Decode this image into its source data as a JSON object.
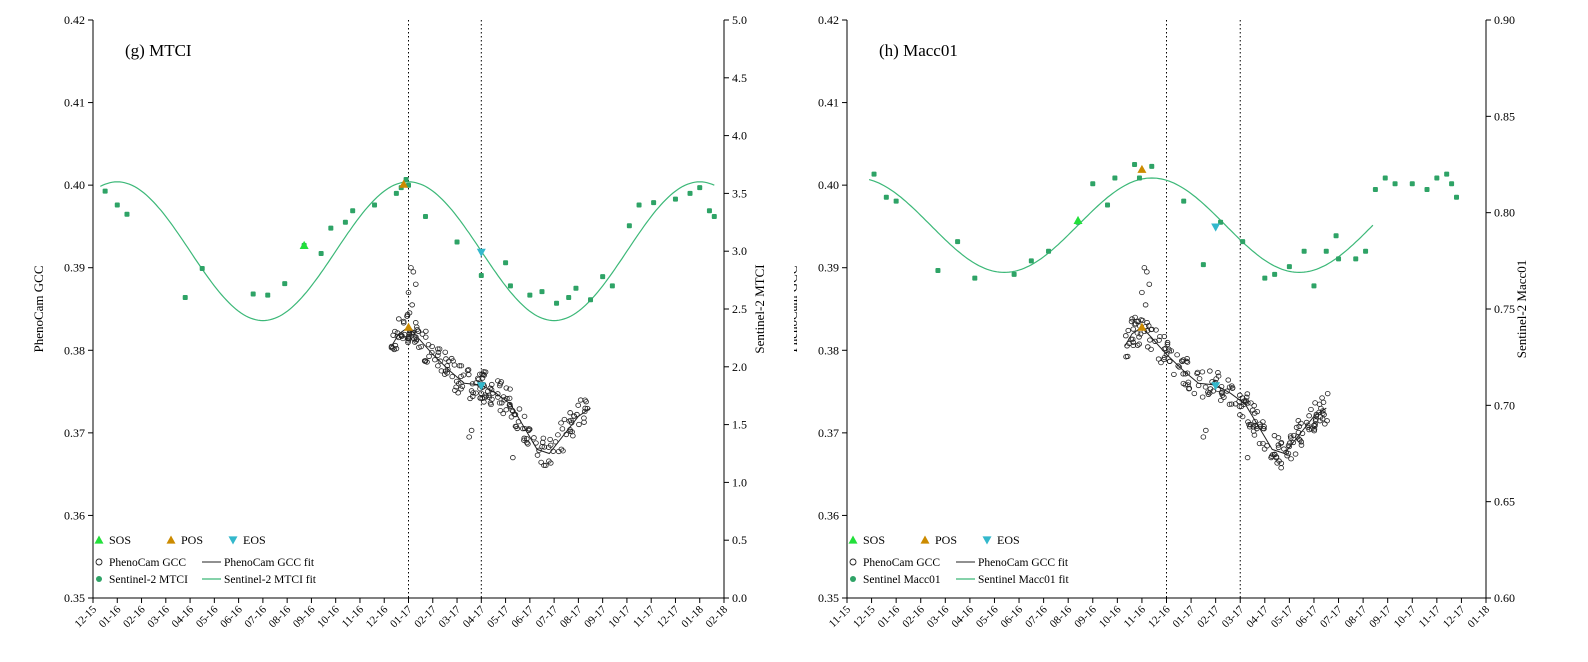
{
  "colors": {
    "s2_marker": "#2ea366",
    "s2_fit": "#3cb878",
    "gcc_fit": "#222222",
    "sos": "#22e03a",
    "pos": "#cc8b00",
    "eos": "#33b8cc",
    "vline": "#000000"
  },
  "chart_data": [
    {
      "id": "g",
      "type": "scatter",
      "title": "(g) MTCI",
      "ylabel": "PhenoCam GCC",
      "y2label": "Sentinel-2 MTCI",
      "ylim": [
        0.35,
        0.42
      ],
      "y2lim": [
        0.0,
        5.0
      ],
      "yticks": [
        "0.35",
        "0.36",
        "0.37",
        "0.38",
        "0.39",
        "0.40",
        "0.41",
        "0.42"
      ],
      "y2ticks": [
        "0.0",
        "0.5",
        "1.0",
        "1.5",
        "2.0",
        "2.5",
        "3.0",
        "3.5",
        "4.0",
        "4.5",
        "5.0"
      ],
      "xticks": [
        "12-15",
        "01-16",
        "02-16",
        "03-16",
        "04-16",
        "05-16",
        "06-16",
        "07-16",
        "08-16",
        "09-16",
        "10-16",
        "11-16",
        "12-16",
        "01-17",
        "02-17",
        "03-17",
        "04-17",
        "05-17",
        "06-17",
        "07-17",
        "08-17",
        "09-17",
        "10-17",
        "11-17",
        "12-17",
        "01-18",
        "02-18"
      ],
      "vlines": [
        13.0,
        16.0
      ],
      "legend": {
        "sos": "SOS",
        "pos": "POS",
        "eos": "EOS",
        "gcc": "PhenoCam GCC",
        "gcc_fit": "PhenoCam GCC fit",
        "s2": "Sentinel-2 MTCI",
        "s2_fit": "Sentinel-2 MTCI fit"
      },
      "s2_fit": {
        "mean": 3.0,
        "amp": 0.6,
        "peak_x": 13.0,
        "x_start": 0.3,
        "x_end": 25.6
      },
      "s2_points": [
        {
          "x": 0.5,
          "y": 3.52
        },
        {
          "x": 1.0,
          "y": 3.4
        },
        {
          "x": 1.4,
          "y": 3.32
        },
        {
          "x": 3.8,
          "y": 2.6
        },
        {
          "x": 4.5,
          "y": 2.85
        },
        {
          "x": 6.6,
          "y": 2.63
        },
        {
          "x": 7.2,
          "y": 2.62
        },
        {
          "x": 7.9,
          "y": 2.72
        },
        {
          "x": 8.7,
          "y": 3.05
        },
        {
          "x": 9.4,
          "y": 2.98
        },
        {
          "x": 9.8,
          "y": 3.2
        },
        {
          "x": 10.4,
          "y": 3.25
        },
        {
          "x": 10.7,
          "y": 3.35
        },
        {
          "x": 11.6,
          "y": 3.4
        },
        {
          "x": 12.5,
          "y": 3.5
        },
        {
          "x": 12.7,
          "y": 3.55
        },
        {
          "x": 12.9,
          "y": 3.62
        },
        {
          "x": 13.0,
          "y": 3.57
        },
        {
          "x": 13.7,
          "y": 3.3
        },
        {
          "x": 15.0,
          "y": 3.08
        },
        {
          "x": 16.0,
          "y": 2.79
        },
        {
          "x": 17.0,
          "y": 2.9
        },
        {
          "x": 17.2,
          "y": 2.7
        },
        {
          "x": 18.0,
          "y": 2.62
        },
        {
          "x": 18.5,
          "y": 2.65
        },
        {
          "x": 19.1,
          "y": 2.55
        },
        {
          "x": 19.6,
          "y": 2.6
        },
        {
          "x": 19.9,
          "y": 2.68
        },
        {
          "x": 20.5,
          "y": 2.58
        },
        {
          "x": 21.0,
          "y": 2.78
        },
        {
          "x": 21.4,
          "y": 2.7
        },
        {
          "x": 22.1,
          "y": 3.22
        },
        {
          "x": 22.5,
          "y": 3.4
        },
        {
          "x": 23.1,
          "y": 3.42
        },
        {
          "x": 24.0,
          "y": 3.45
        },
        {
          "x": 24.6,
          "y": 3.5
        },
        {
          "x": 25.0,
          "y": 3.55
        },
        {
          "x": 25.4,
          "y": 3.35
        },
        {
          "x": 25.6,
          "y": 3.3
        }
      ],
      "gcc_fit": [
        {
          "x": 12.3,
          "y": 0.3805
        },
        {
          "x": 12.6,
          "y": 0.382
        },
        {
          "x": 13.0,
          "y": 0.3828
        },
        {
          "x": 13.4,
          "y": 0.3815
        },
        {
          "x": 14.0,
          "y": 0.3795
        },
        {
          "x": 14.7,
          "y": 0.3775
        },
        {
          "x": 15.3,
          "y": 0.376
        },
        {
          "x": 16.0,
          "y": 0.3758
        },
        {
          "x": 16.6,
          "y": 0.3748
        },
        {
          "x": 17.2,
          "y": 0.3735
        },
        {
          "x": 17.8,
          "y": 0.3705
        },
        {
          "x": 18.3,
          "y": 0.368
        },
        {
          "x": 18.8,
          "y": 0.3675
        },
        {
          "x": 19.2,
          "y": 0.369
        },
        {
          "x": 19.6,
          "y": 0.3705
        },
        {
          "x": 20.0,
          "y": 0.372
        },
        {
          "x": 20.5,
          "y": 0.373
        }
      ],
      "gcc_pts_seed": 7,
      "gcc_x_range": [
        12.3,
        20.6
      ],
      "gcc_spikes": [
        {
          "x": 13.1,
          "y": 0.39
        },
        {
          "x": 13.2,
          "y": 0.3895
        },
        {
          "x": 13.0,
          "y": 0.387
        },
        {
          "x": 13.3,
          "y": 0.388
        },
        {
          "x": 13.15,
          "y": 0.3855
        },
        {
          "x": 15.5,
          "y": 0.3695
        },
        {
          "x": 15.6,
          "y": 0.3703
        },
        {
          "x": 17.3,
          "y": 0.367
        },
        {
          "x": 12.6,
          "y": 0.3838
        },
        {
          "x": 12.8,
          "y": 0.3835
        }
      ],
      "markers": {
        "sos": [
          {
            "x": 8.7,
            "y2": 3.05
          }
        ],
        "pos": [
          {
            "x": 12.8,
            "y2": 3.58
          },
          {
            "x": 13.0,
            "y": 0.3828
          }
        ],
        "eos": [
          {
            "x": 16.0,
            "y2": 2.99
          },
          {
            "x": 16.0,
            "y": 0.3757
          }
        ]
      }
    },
    {
      "id": "h",
      "type": "scatter",
      "title": "(h) Macc01",
      "ylabel": "PhenoCam GCC",
      "y2label": "Sentinel-2 Macc01",
      "ylim": [
        0.35,
        0.42
      ],
      "y2lim": [
        0.6,
        0.9
      ],
      "yticks": [
        "0.35",
        "0.36",
        "0.37",
        "0.38",
        "0.39",
        "0.40",
        "0.41",
        "0.42"
      ],
      "y2ticks": [
        "0.60",
        "0.65",
        "0.70",
        "0.75",
        "0.80",
        "0.85",
        "0.90"
      ],
      "xticks": [
        "11-15",
        "12-15",
        "01-16",
        "02-16",
        "03-16",
        "04-16",
        "05-16",
        "06-16",
        "07-16",
        "08-16",
        "09-16",
        "10-16",
        "11-16",
        "12-16",
        "01-17",
        "02-17",
        "03-17",
        "04-17",
        "05-17",
        "06-17",
        "07-17",
        "08-17",
        "09-17",
        "10-17",
        "11-17",
        "12-17",
        "01-18"
      ],
      "vlines": [
        13.0,
        16.0
      ],
      "legend": {
        "sos": "SOS",
        "pos": "POS",
        "eos": "EOS",
        "gcc": "PhenoCam GCC",
        "gcc_fit": "PhenoCam GCC fit",
        "s2": "Sentinel Macc01",
        "s2_fit": "Sentinel Macc01 fit"
      },
      "s2_fit": {
        "mean": 0.7935,
        "amp": 0.0245,
        "peak_x": 12.4,
        "x_start": 0.9,
        "x_end": 21.4
      },
      "s2_points": [
        {
          "x": 1.1,
          "y": 0.82
        },
        {
          "x": 1.6,
          "y": 0.808
        },
        {
          "x": 2.0,
          "y": 0.806
        },
        {
          "x": 3.7,
          "y": 0.77
        },
        {
          "x": 4.5,
          "y": 0.785
        },
        {
          "x": 5.2,
          "y": 0.766
        },
        {
          "x": 6.8,
          "y": 0.768
        },
        {
          "x": 7.5,
          "y": 0.775
        },
        {
          "x": 8.2,
          "y": 0.78
        },
        {
          "x": 9.4,
          "y": 0.795
        },
        {
          "x": 10.0,
          "y": 0.815
        },
        {
          "x": 10.6,
          "y": 0.804
        },
        {
          "x": 10.9,
          "y": 0.818
        },
        {
          "x": 11.7,
          "y": 0.825
        },
        {
          "x": 11.9,
          "y": 0.818
        },
        {
          "x": 12.4,
          "y": 0.824
        },
        {
          "x": 13.7,
          "y": 0.806
        },
        {
          "x": 14.5,
          "y": 0.773
        },
        {
          "x": 15.2,
          "y": 0.795
        },
        {
          "x": 16.1,
          "y": 0.785
        },
        {
          "x": 17.0,
          "y": 0.766
        },
        {
          "x": 17.4,
          "y": 0.768
        },
        {
          "x": 18.0,
          "y": 0.772
        },
        {
          "x": 18.6,
          "y": 0.78
        },
        {
          "x": 19.0,
          "y": 0.762
        },
        {
          "x": 19.5,
          "y": 0.78
        },
        {
          "x": 19.9,
          "y": 0.788
        },
        {
          "x": 20.0,
          "y": 0.776
        },
        {
          "x": 20.7,
          "y": 0.776
        },
        {
          "x": 21.1,
          "y": 0.78
        },
        {
          "x": 21.5,
          "y": 0.812
        },
        {
          "x": 21.9,
          "y": 0.818
        },
        {
          "x": 22.3,
          "y": 0.815
        },
        {
          "x": 23.0,
          "y": 0.815
        },
        {
          "x": 23.6,
          "y": 0.812
        },
        {
          "x": 24.0,
          "y": 0.818
        },
        {
          "x": 24.4,
          "y": 0.82
        },
        {
          "x": 24.6,
          "y": 0.815
        },
        {
          "x": 24.8,
          "y": 0.808
        }
      ],
      "gcc_fit": [
        {
          "x": 11.3,
          "y": 0.3805
        },
        {
          "x": 11.6,
          "y": 0.382
        },
        {
          "x": 12.0,
          "y": 0.3828
        },
        {
          "x": 12.4,
          "y": 0.3815
        },
        {
          "x": 13.0,
          "y": 0.3795
        },
        {
          "x": 13.7,
          "y": 0.3775
        },
        {
          "x": 14.3,
          "y": 0.376
        },
        {
          "x": 15.0,
          "y": 0.3758
        },
        {
          "x": 15.6,
          "y": 0.3748
        },
        {
          "x": 16.2,
          "y": 0.3735
        },
        {
          "x": 16.8,
          "y": 0.3705
        },
        {
          "x": 17.3,
          "y": 0.368
        },
        {
          "x": 17.8,
          "y": 0.3675
        },
        {
          "x": 18.2,
          "y": 0.369
        },
        {
          "x": 18.6,
          "y": 0.3705
        },
        {
          "x": 19.0,
          "y": 0.372
        },
        {
          "x": 19.5,
          "y": 0.373
        }
      ],
      "gcc_pts_seed": 11,
      "gcc_x_range": [
        11.3,
        19.6
      ],
      "gcc_spikes": [
        {
          "x": 12.1,
          "y": 0.39
        },
        {
          "x": 12.2,
          "y": 0.3895
        },
        {
          "x": 12.0,
          "y": 0.387
        },
        {
          "x": 12.3,
          "y": 0.388
        },
        {
          "x": 12.15,
          "y": 0.3855
        },
        {
          "x": 14.5,
          "y": 0.3695
        },
        {
          "x": 14.6,
          "y": 0.3703
        },
        {
          "x": 16.3,
          "y": 0.367
        },
        {
          "x": 11.6,
          "y": 0.3838
        },
        {
          "x": 11.8,
          "y": 0.3835
        }
      ],
      "markers": {
        "sos": [
          {
            "x": 9.4,
            "y2": 0.796
          }
        ],
        "pos": [
          {
            "x": 12.0,
            "y2": 0.8225
          },
          {
            "x": 12.0,
            "y": 0.3828
          }
        ],
        "eos": [
          {
            "x": 15.0,
            "y2": 0.7925
          },
          {
            "x": 15.0,
            "y": 0.3757
          }
        ]
      }
    }
  ]
}
